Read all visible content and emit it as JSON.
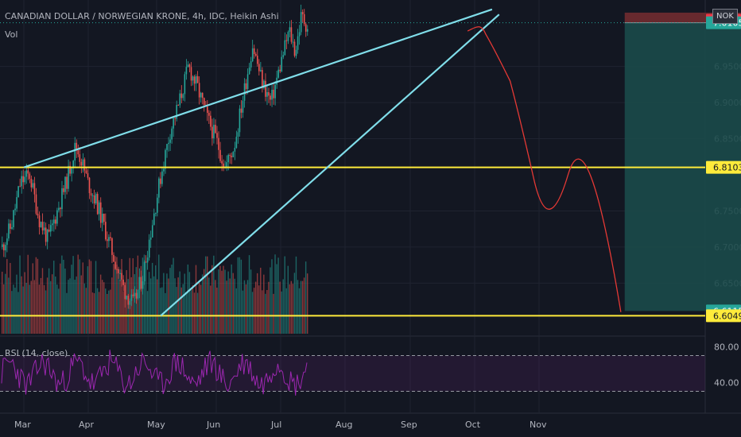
{
  "header": {
    "title": "CANADIAN DOLLAR / NORWEGIAN KRONE, 4h, IDC, Heikin Ashi",
    "volume_label": "Vol",
    "rsi_label": "RSI (14, close)",
    "currency_badge": "NOK"
  },
  "colors": {
    "background": "#131722",
    "grid": "#1f2330",
    "bull": "#26a69a",
    "bear": "#ef5350",
    "trendline": "#80deea",
    "support": "#ffeb3b",
    "projection": "#e53935",
    "rsi": "#9c27b0",
    "profit_zone": "#1b4a4a",
    "loss_zone": "#6b2a2f",
    "axis_text": "#b2b5be"
  },
  "chart_data": {
    "type": "candlestick",
    "title": "CANADIAN DOLLAR / NORWEGIAN KRONE, 4h, IDC, Heikin Ashi",
    "price_axis": {
      "ticks": [
        "6.9500",
        "6.9000",
        "6.8500",
        "6.7500",
        "6.7000",
        "6.6500"
      ],
      "ylim": [
        6.58,
        7.042
      ]
    },
    "time_axis": {
      "labels": [
        "Mar",
        "Apr",
        "May",
        "Jun",
        "Jul",
        "Aug",
        "Sep",
        "Oct",
        "Nov"
      ]
    },
    "price_labels": [
      {
        "text": "7.0139",
        "value": 7.0139,
        "color": "#f23645",
        "text_color": "#ffffff"
      },
      {
        "text": "7.0105",
        "value": 7.0105,
        "color": "#26a69a",
        "text_color": "#ffffff"
      },
      {
        "text": "6.8103",
        "value": 6.8103,
        "color": "#ffeb3b",
        "text_color": "#131722"
      },
      {
        "text": "6.6115",
        "value": 6.6115,
        "color": "#26a69a",
        "text_color": "#ffffff"
      },
      {
        "text": "6.6049",
        "value": 6.6049,
        "color": "#ffeb3b",
        "text_color": "#131722"
      }
    ],
    "support_levels": [
      6.8103,
      6.6049
    ],
    "price_path": [
      [
        0,
        6.7
      ],
      [
        3,
        6.73
      ],
      [
        6,
        6.79
      ],
      [
        9,
        6.8
      ],
      [
        12,
        6.74
      ],
      [
        15,
        6.71
      ],
      [
        18,
        6.75
      ],
      [
        21,
        6.79
      ],
      [
        24,
        6.84
      ],
      [
        26,
        6.82
      ],
      [
        28,
        6.79
      ],
      [
        31,
        6.76
      ],
      [
        34,
        6.72
      ],
      [
        37,
        6.68
      ],
      [
        40,
        6.64
      ],
      [
        43,
        6.62
      ],
      [
        46,
        6.66
      ],
      [
        49,
        6.73
      ],
      [
        52,
        6.8
      ],
      [
        55,
        6.86
      ],
      [
        58,
        6.9
      ],
      [
        61,
        6.95
      ],
      [
        64,
        6.92
      ],
      [
        67,
        6.88
      ],
      [
        70,
        6.85
      ],
      [
        73,
        6.81
      ],
      [
        76,
        6.84
      ],
      [
        79,
        6.91
      ],
      [
        82,
        6.98
      ],
      [
        85,
        6.93
      ],
      [
        88,
        6.9
      ],
      [
        91,
        6.95
      ],
      [
        94,
        7.0
      ],
      [
        96,
        6.97
      ],
      [
        98,
        7.02
      ],
      [
        100,
        7.005
      ]
    ],
    "volume": {
      "min_pct": 0.5,
      "max_pct": 1.0
    },
    "trendlines": [
      {
        "x1": 0,
        "y1": 6.8103,
        "x2": 7.27,
        "y2": 7.029
      },
      {
        "x1": 2.07,
        "y1": 6.6049,
        "x2": 7.38,
        "y2": 7.022
      }
    ],
    "projection": [
      {
        "x": 6.89,
        "y": 6.999
      },
      {
        "x": 7.17,
        "y": 6.995,
        "c1x": 7.03,
        "c1y": 7.005,
        "c2x": 7.1,
        "c2y": 7.01
      },
      {
        "x": 7.55,
        "y": 6.93,
        "c1x": 7.3,
        "c1y": 6.975
      },
      {
        "x": 7.93,
        "y": 6.79,
        "c1x": 7.7,
        "c1y": 6.88
      },
      {
        "x": 8.45,
        "y": 6.8,
        "c1x": 8.15,
        "c1y": 6.71
      },
      {
        "x": 9.27,
        "y": 6.61,
        "c1x": 8.75,
        "c1y": 6.89
      }
    ],
    "position": {
      "x_start": 9.33,
      "x_end": 11.7,
      "entry": 7.0105,
      "stop": 7.0139,
      "target": 6.6115
    },
    "rsi": {
      "label": "RSI (14, close)",
      "ticks": [
        "80.00",
        "40.00"
      ],
      "upper": 70,
      "lower": 30,
      "ylim": [
        10,
        90
      ]
    }
  }
}
